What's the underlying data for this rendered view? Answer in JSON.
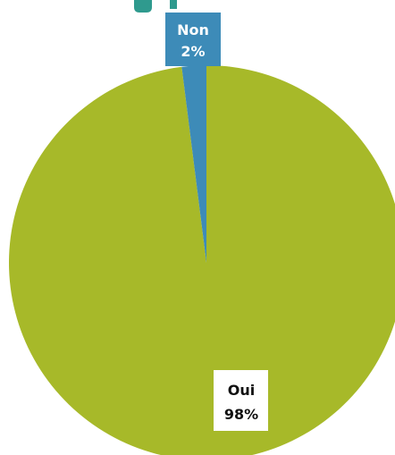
{
  "chart_data": {
    "type": "pie",
    "slices": [
      {
        "label": "Oui",
        "value": 98,
        "value_label": "98%",
        "color": "#a7b929"
      },
      {
        "label": "Non",
        "value": 2,
        "value_label": "2%",
        "color": "#3d8bb8"
      }
    ],
    "colors": {
      "title_fragment": "#2f9a8e",
      "label_box_light": "#ffffff",
      "label_text_dark": "#111111",
      "label_text_light": "#ffffff"
    }
  }
}
